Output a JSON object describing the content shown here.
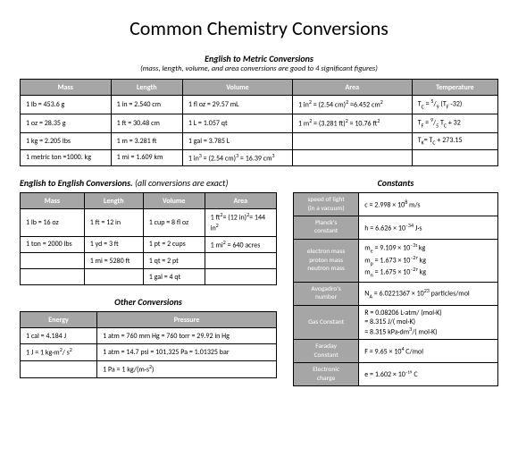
{
  "title": "Common Chemistry Conversions",
  "section1": {
    "title": "English to Metric Conversions",
    "note": "(mass, length, volume, and area conversions are good to 4 significant figures)",
    "headers": [
      "Mass",
      "Length",
      "Volume",
      "Area",
      "Temperature"
    ],
    "rows": [
      [
        "1 lb = 453.6 g",
        "1 in = 2.540 cm",
        "1 fl oz = 29.57 mL",
        "1 in² = (2.54 cm)² =6.452 cm²",
        "T_C = ⁵/₉ (T_F -32)"
      ],
      [
        "1 oz = 28.35 g",
        "1 ft = 30.48 cm",
        "1 L = 1.057 qt",
        "1 m² = (3.281 ft)² = 10.76 ft²",
        "T_F = ⁹/₅ T_C + 32"
      ],
      [
        "1 kg = 2.205 lbs",
        "1 m = 3.281 ft",
        "1 gal = 3.785 L",
        "",
        "T_K= T_C + 273.15"
      ],
      [
        "1 metric ton =1000. kg",
        "1 mi = 1.609 km",
        "1 in³ = (2.54 cm)³ = 16.39 cm³",
        "",
        ""
      ]
    ]
  },
  "section2": {
    "title": "English to English Conversions.",
    "note": "(all conversions are exact)",
    "headers": [
      "Mass",
      "Length",
      "Volume",
      "Area"
    ],
    "rows": [
      [
        "1 lb = 16 oz",
        "1 ft = 12 in",
        "1 cup = 8 fl oz",
        "1 ft²= (12 in)²= 144 in²"
      ],
      [
        "1 ton = 2000 lbs",
        "1 yd = 3 ft",
        "1 pt = 2 cups",
        "1 mi² = 640 acres"
      ],
      [
        "",
        "1 mi = 5280 ft",
        "1 qt = 2 pt",
        ""
      ],
      [
        "",
        "",
        "1 gal = 4 qt",
        ""
      ]
    ]
  },
  "section3": {
    "title": "Other Conversions",
    "headers": [
      "Energy",
      "Pressure"
    ],
    "rows": [
      [
        "1 cal = 4.184 J",
        "1 atm = 760 mm Hg = 760 torr = 29.92 in Hg"
      ],
      [
        "1 J = 1 kg·m²/ s²",
        "1 atm = 14.7 psi = 101,325 Pa = 1.01325 bar"
      ],
      [
        "",
        "1 Pa = 1 kg/(m·s²)"
      ]
    ]
  },
  "section4": {
    "title": "Constants",
    "rows": [
      [
        "speed of light\n(in a vacuum)",
        "c = 2.998 × 10⁸ m/s"
      ],
      [
        "Planck's\nconstant",
        "h = 6.626 × 10⁻³⁴ J·s"
      ],
      [
        "electron mass\nproton mass\nneutron mass",
        "mₑ = 9.109 × 10⁻³¹ kg\nmₚ = 1.673 × 10⁻²⁷ kg\nmₙ = 1.675 × 10⁻²⁷ kg"
      ],
      [
        "Avogadro's\nnumber",
        "N_A = 6.0221367 × 10²³ particles/mol"
      ],
      [
        "Gas Constant",
        "R = 0.08206 L·atm/ (mol·K)\n   = 8.315 J/( mol·K)\n   = 8.315 kPa·dm³/( mol·K)"
      ],
      [
        "Faraday\nConstant",
        "F = 9.65 × 10⁴ C/mol"
      ],
      [
        "Electronic\ncharge",
        "e = 1.602 × 10⁻¹⁹ C"
      ]
    ]
  },
  "colors": {
    "header_bg": "#a6a6a6",
    "header_fg": "#ffffff",
    "border": "#000000",
    "bg": "#ffffff"
  }
}
